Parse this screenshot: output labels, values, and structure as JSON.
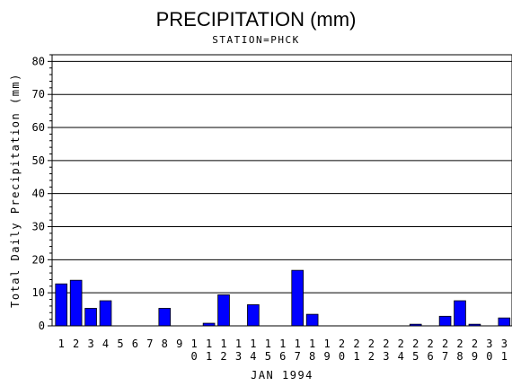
{
  "chart_data": {
    "type": "bar",
    "title": "PRECIPITATION (mm)",
    "subtitle": "STATION=PHCK",
    "xlabel": "JAN 1994",
    "ylabel": "Total Daily Precipitation (mm)",
    "ylim": [
      0,
      82
    ],
    "yticks": [
      0,
      10,
      20,
      30,
      40,
      50,
      60,
      70,
      80
    ],
    "grid": true,
    "bar_color": "#0000ff",
    "categories": [
      "1",
      "2",
      "3",
      "4",
      "5",
      "6",
      "7",
      "8",
      "9",
      "10",
      "11",
      "12",
      "13",
      "14",
      "15",
      "16",
      "17",
      "18",
      "19",
      "20",
      "21",
      "22",
      "23",
      "24",
      "25",
      "26",
      "27",
      "28",
      "29",
      "30",
      "31"
    ],
    "values": [
      12.7,
      13.8,
      5.3,
      7.6,
      0,
      0,
      0,
      5.3,
      0,
      0,
      0.8,
      9.4,
      0,
      6.4,
      0,
      0,
      16.8,
      3.5,
      0,
      0,
      0,
      0,
      0,
      0,
      0.5,
      0,
      2.9,
      7.6,
      0.5,
      0,
      2.4
    ]
  }
}
